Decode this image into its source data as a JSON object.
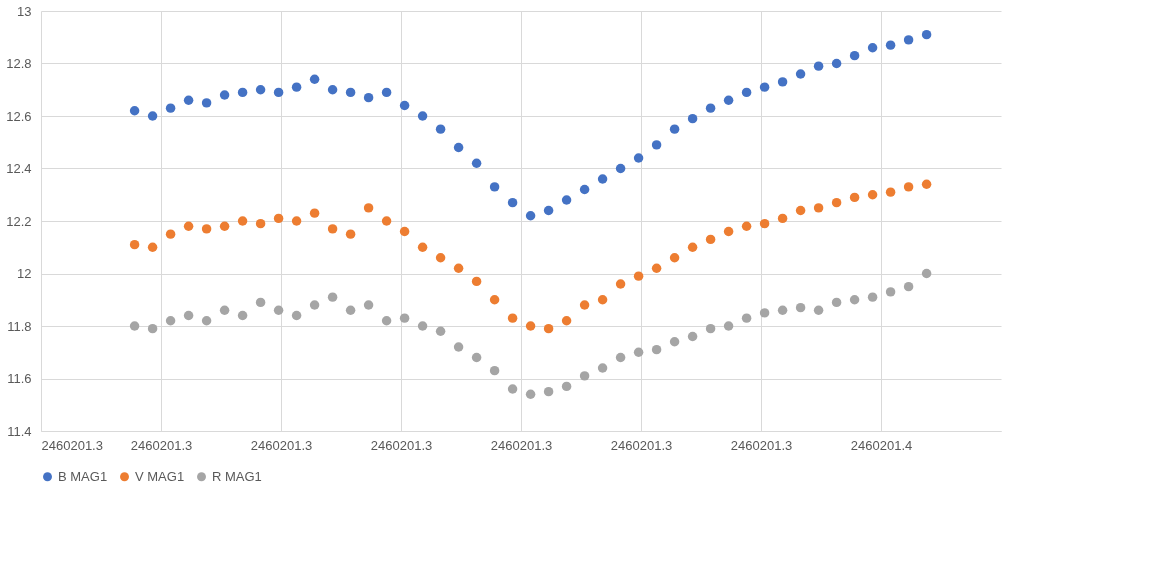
{
  "chart_data": {
    "type": "scatter",
    "marker": "circle",
    "grid": true,
    "legend": "bottom",
    "x": [
      2460201.2878,
      2460201.2893,
      2460201.2908,
      2460201.2923,
      2460201.2938,
      2460201.2953,
      2460201.2968,
      2460201.2983,
      2460201.2998,
      2460201.3013,
      2460201.3028,
      2460201.3043,
      2460201.3058,
      2460201.3073,
      2460201.3088,
      2460201.3103,
      2460201.3118,
      2460201.3133,
      2460201.3148,
      2460201.3163,
      2460201.3178,
      2460201.3193,
      2460201.3208,
      2460201.3223,
      2460201.3238,
      2460201.3253,
      2460201.3268,
      2460201.3283,
      2460201.3298,
      2460201.3313,
      2460201.3328,
      2460201.3343,
      2460201.3358,
      2460201.3373,
      2460201.3388,
      2460201.3403,
      2460201.3418,
      2460201.3433,
      2460201.3448,
      2460201.3463,
      2460201.3478,
      2460201.3493,
      2460201.3508,
      2460201.3523,
      2460201.3538
    ],
    "series": [
      {
        "name": "B MAG1",
        "color": "#4472c4",
        "values": [
          12.62,
          12.6,
          12.63,
          12.66,
          12.65,
          12.68,
          12.69,
          12.7,
          12.69,
          12.71,
          12.74,
          12.7,
          12.69,
          12.67,
          12.69,
          12.64,
          12.6,
          12.55,
          12.48,
          12.42,
          12.33,
          12.27,
          12.22,
          12.24,
          12.28,
          12.32,
          12.36,
          12.4,
          12.44,
          12.49,
          12.55,
          12.59,
          12.63,
          12.66,
          12.69,
          12.71,
          12.73,
          12.76,
          12.79,
          12.8,
          12.83,
          12.86,
          12.87,
          12.89,
          12.91
        ]
      },
      {
        "name": "V MAG1",
        "color": "#ed7d31",
        "values": [
          12.11,
          12.1,
          12.15,
          12.18,
          12.17,
          12.18,
          12.2,
          12.19,
          12.21,
          12.2,
          12.23,
          12.17,
          12.15,
          12.25,
          12.2,
          12.16,
          12.1,
          12.06,
          12.02,
          11.97,
          11.9,
          11.83,
          11.8,
          11.79,
          11.82,
          11.88,
          11.9,
          11.96,
          11.99,
          12.02,
          12.06,
          12.1,
          12.13,
          12.16,
          12.18,
          12.19,
          12.21,
          12.24,
          12.25,
          12.27,
          12.29,
          12.3,
          12.31,
          12.33,
          12.34
        ]
      },
      {
        "name": "R MAG1",
        "color": "#a5a5a5",
        "values": [
          11.8,
          11.79,
          11.82,
          11.84,
          11.82,
          11.86,
          11.84,
          11.89,
          11.86,
          11.84,
          11.88,
          11.91,
          11.86,
          11.88,
          11.82,
          11.83,
          11.8,
          11.78,
          11.72,
          11.68,
          11.63,
          11.56,
          11.54,
          11.55,
          11.57,
          11.61,
          11.64,
          11.68,
          11.7,
          11.71,
          11.74,
          11.76,
          11.79,
          11.8,
          11.83,
          11.85,
          11.86,
          11.87,
          11.86,
          11.89,
          11.9,
          11.91,
          11.93,
          11.95,
          12.0
        ]
      }
    ],
    "xlim": [
      2460201.28,
      2460201.36
    ],
    "xticks": [
      {
        "value": 2460201.28,
        "label": "2460201.3"
      },
      {
        "value": 2460201.29,
        "label": "2460201.3"
      },
      {
        "value": 2460201.3,
        "label": "2460201.3"
      },
      {
        "value": 2460201.31,
        "label": "2460201.3"
      },
      {
        "value": 2460201.32,
        "label": "2460201.3"
      },
      {
        "value": 2460201.33,
        "label": "2460201.3"
      },
      {
        "value": 2460201.34,
        "label": "2460201.3"
      },
      {
        "value": 2460201.35,
        "label": "2460201.4"
      }
    ],
    "ylim": [
      11.4,
      13
    ],
    "yticks": [
      11.4,
      11.6,
      11.8,
      12,
      12.2,
      12.4,
      12.6,
      12.8,
      13
    ]
  }
}
